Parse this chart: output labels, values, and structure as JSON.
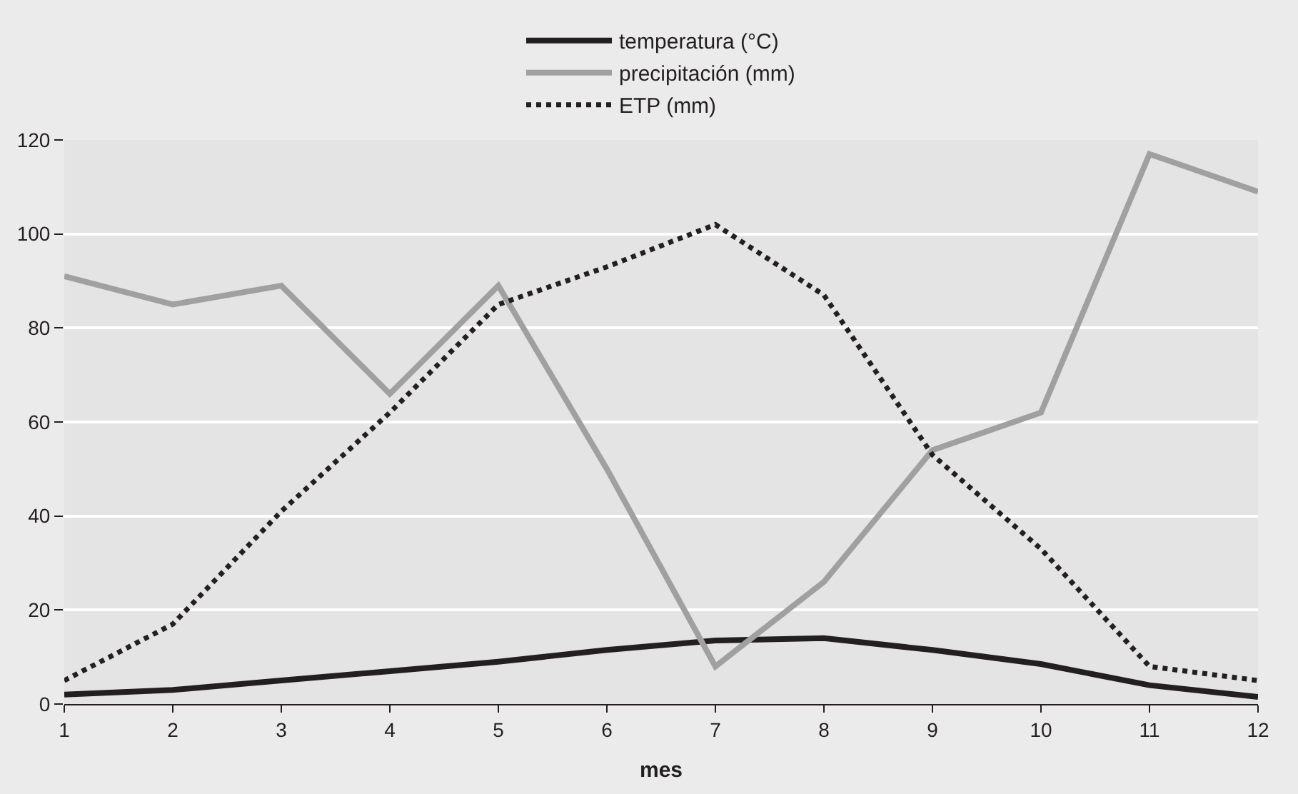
{
  "chart_data": {
    "type": "line",
    "xlabel": "mes",
    "x": [
      1,
      2,
      3,
      4,
      5,
      6,
      7,
      8,
      9,
      10,
      11,
      12
    ],
    "xlim": [
      1,
      12
    ],
    "xticks": [
      1,
      2,
      3,
      4,
      5,
      6,
      7,
      8,
      9,
      10,
      11,
      12
    ],
    "ylim": [
      0,
      120
    ],
    "yticks": [
      0,
      20,
      40,
      60,
      80,
      100,
      120
    ],
    "grid": "y",
    "legend": "top",
    "marker": "none",
    "series": [
      {
        "name": "temperatura (°C)",
        "color": "#231f20",
        "line_style": "solid",
        "values": [
          2,
          3,
          5,
          7,
          9,
          11.5,
          13.5,
          14,
          11.5,
          8.5,
          4,
          1.5
        ]
      },
      {
        "name": "precipitación (mm)",
        "color": "#a0a0a0",
        "line_style": "solid",
        "values": [
          91,
          85,
          89,
          66,
          89,
          50,
          8,
          26,
          54,
          62,
          117,
          109
        ]
      },
      {
        "name": "ETP (mm)",
        "color": "#231f20",
        "line_style": "dotted",
        "values": [
          5,
          17,
          41,
          62,
          85,
          93,
          102,
          87,
          53,
          33,
          8,
          5
        ]
      }
    ]
  }
}
